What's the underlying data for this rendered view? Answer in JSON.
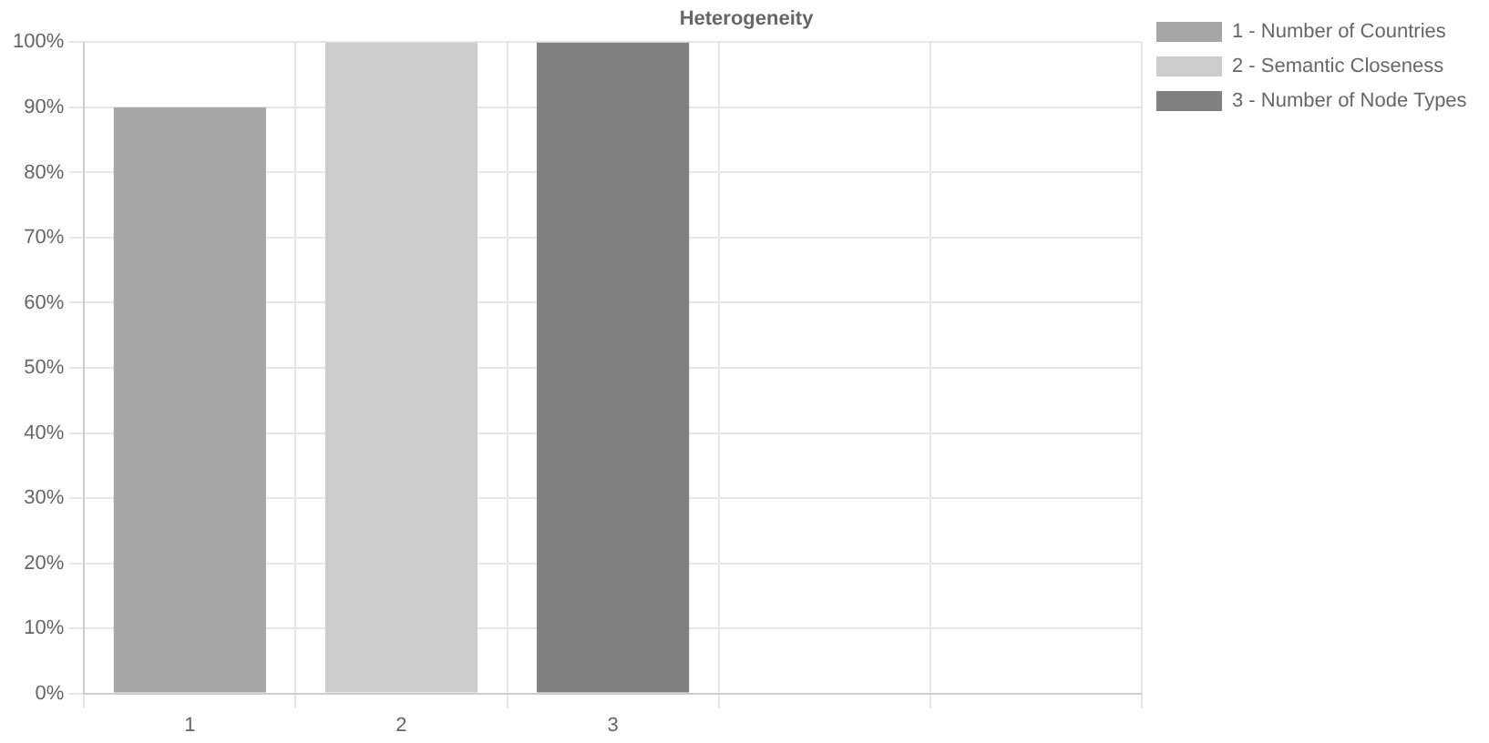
{
  "chart_data": {
    "type": "bar",
    "title": "Heterogeneity",
    "categories": [
      "1",
      "2",
      "3",
      null,
      null
    ],
    "series": [
      {
        "name": "1 - Number of Countries",
        "color": "#a6a6a6",
        "values": [
          90,
          null,
          null,
          null,
          null
        ]
      },
      {
        "name": "2 - Semantic Closeness",
        "color": "#cccccc",
        "values": [
          null,
          100,
          null,
          null,
          null
        ]
      },
      {
        "name": "3 - Number of Node Types",
        "color": "#808080",
        "values": [
          null,
          null,
          100,
          null,
          null
        ]
      }
    ],
    "ylim": [
      0,
      100
    ],
    "yticks": [
      {
        "value": 0,
        "label": "0%"
      },
      {
        "value": 10,
        "label": "10%"
      },
      {
        "value": 20,
        "label": "20%"
      },
      {
        "value": 30,
        "label": "30%"
      },
      {
        "value": 40,
        "label": "40%"
      },
      {
        "value": 50,
        "label": "50%"
      },
      {
        "value": 60,
        "label": "60%"
      },
      {
        "value": 70,
        "label": "70%"
      },
      {
        "value": 80,
        "label": "80%"
      },
      {
        "value": 90,
        "label": "90%"
      },
      {
        "value": 100,
        "label": "100%"
      }
    ],
    "grid": true,
    "legend": "right"
  }
}
